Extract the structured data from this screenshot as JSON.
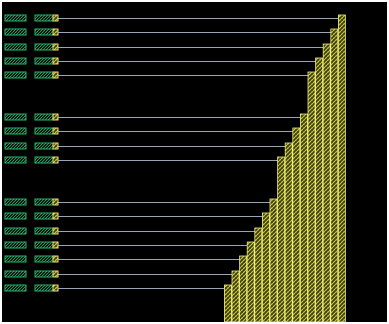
{
  "colors": {
    "background": "#000000",
    "frame": "#ffffff",
    "cell_fill": "#3a3a14",
    "cell_hatch": "#d6d640",
    "cell_border": "#f0f07a",
    "pin_outline": "#23b86a",
    "pin_fill": "#04140a",
    "pin_hatch": "#4fd08f",
    "contact": "#e8e070",
    "wire": "#9aa6b8"
  },
  "layout": {
    "row_groups": [
      {
        "name": "group-top",
        "rows": 5
      },
      {
        "name": "group-middle",
        "rows": 4
      },
      {
        "name": "group-bottom",
        "rows": 7
      }
    ],
    "columns": 16
  }
}
